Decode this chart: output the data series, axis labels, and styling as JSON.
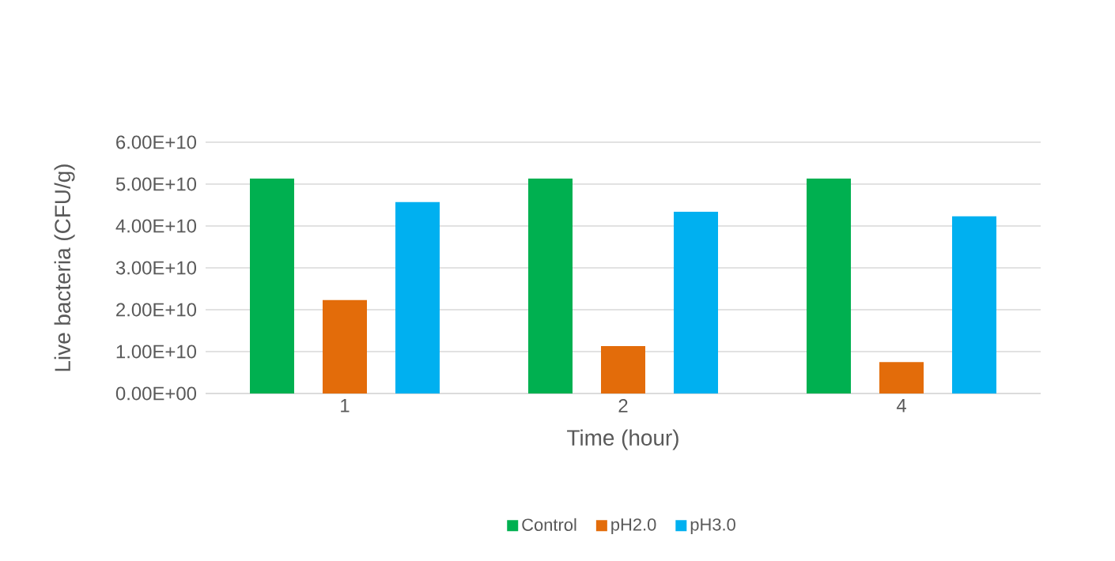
{
  "chart_data": {
    "type": "bar",
    "xlabel": "Time (hour)",
    "ylabel": "Live bacteria (CFU/g)",
    "categories": [
      "1",
      "2",
      "4"
    ],
    "series": [
      {
        "name": "Control",
        "color": "#00b050",
        "values": [
          51300000000.0,
          51300000000.0,
          51300000000.0
        ]
      },
      {
        "name": "pH2.0",
        "color": "#e36c0a",
        "values": [
          22300000000.0,
          11300000000.0,
          7500000000.0
        ]
      },
      {
        "name": "pH3.0",
        "color": "#00b0f0",
        "values": [
          45700000000.0,
          43400000000.0,
          42300000000.0
        ]
      }
    ],
    "ylim": [
      0,
      60000000000.0
    ],
    "yticks": [
      {
        "value": 0,
        "label": "0.00E+00"
      },
      {
        "value": 10000000000.0,
        "label": "1.00E+10"
      },
      {
        "value": 20000000000.0,
        "label": "2.00E+10"
      },
      {
        "value": 30000000000.0,
        "label": "3.00E+10"
      },
      {
        "value": 40000000000.0,
        "label": "4.00E+10"
      },
      {
        "value": 50000000000.0,
        "label": "5.00E+10"
      },
      {
        "value": 60000000000.0,
        "label": "6.00E+10"
      }
    ],
    "grid": "y",
    "legend": "bottom"
  }
}
